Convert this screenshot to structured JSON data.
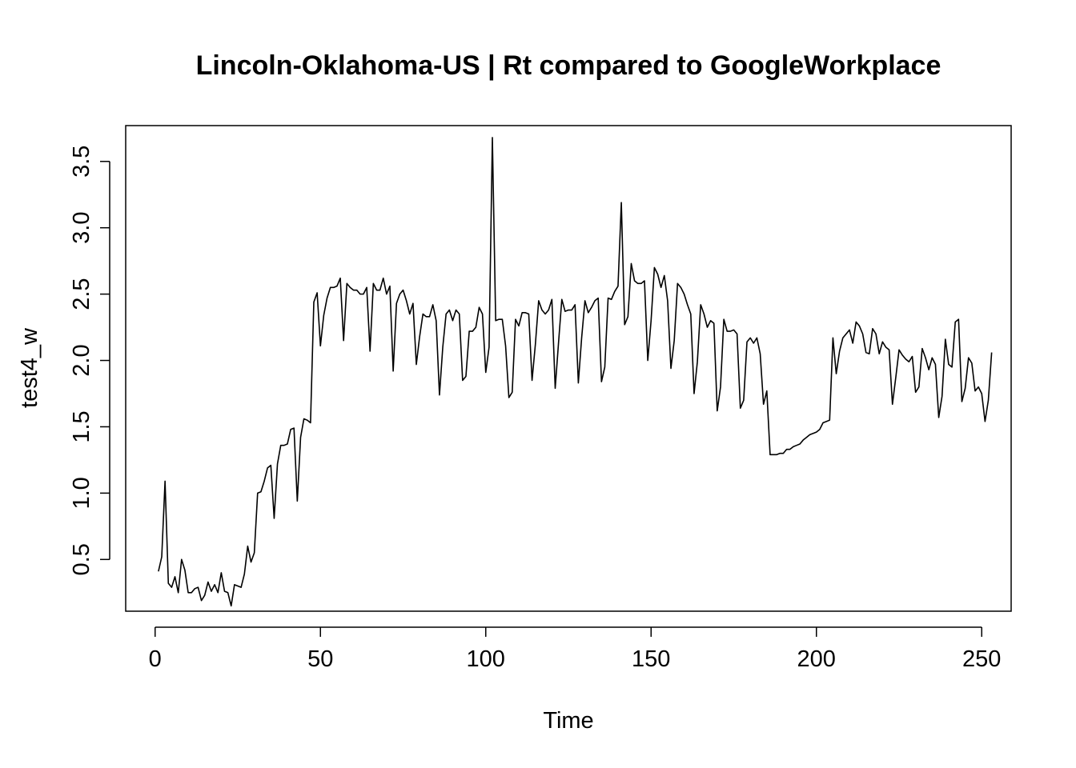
{
  "chart_data": {
    "type": "line",
    "title": "Lincoln-Oklahoma-US | Rt compared to GoogleWorkplace",
    "xlabel": "Time",
    "ylabel": "test4_w",
    "xlim": [
      -8.9,
      258.9
    ],
    "ylim": [
      0.11,
      3.77
    ],
    "xticks": [
      0,
      50,
      100,
      150,
      200,
      250
    ],
    "xtick_labels": [
      "0",
      "50",
      "100",
      "150",
      "200",
      "250"
    ],
    "yticks": [
      0.5,
      1.0,
      1.5,
      2.0,
      2.5,
      3.0,
      3.5
    ],
    "ytick_labels": [
      "0.5",
      "1.0",
      "1.5",
      "2.0",
      "2.5",
      "3.0",
      "3.5"
    ],
    "grid": false,
    "line_color": "#000000",
    "series": [
      {
        "x_start": 1,
        "values": [
          0.41,
          0.52,
          1.09,
          0.32,
          0.29,
          0.37,
          0.25,
          0.5,
          0.42,
          0.25,
          0.25,
          0.28,
          0.29,
          0.19,
          0.23,
          0.33,
          0.26,
          0.31,
          0.25,
          0.4,
          0.26,
          0.25,
          0.15,
          0.31,
          0.3,
          0.29,
          0.39,
          0.6,
          0.48,
          0.55,
          1.0,
          1.01,
          1.09,
          1.19,
          1.21,
          0.81,
          1.22,
          1.36,
          1.36,
          1.37,
          1.48,
          1.49,
          0.94,
          1.42,
          1.56,
          1.55,
          1.53,
          2.44,
          2.51,
          2.11,
          2.34,
          2.47,
          2.55,
          2.55,
          2.56,
          2.62,
          2.15,
          2.58,
          2.55,
          2.53,
          2.53,
          2.5,
          2.5,
          2.55,
          2.07,
          2.58,
          2.53,
          2.53,
          2.62,
          2.5,
          2.56,
          1.92,
          2.43,
          2.5,
          2.53,
          2.45,
          2.35,
          2.43,
          1.97,
          2.18,
          2.35,
          2.33,
          2.33,
          2.42,
          2.3,
          1.74,
          2.1,
          2.35,
          2.38,
          2.3,
          2.38,
          2.35,
          1.85,
          1.88,
          2.22,
          2.22,
          2.25,
          2.4,
          2.35,
          1.91,
          2.1,
          3.68,
          2.3,
          2.31,
          2.31,
          2.11,
          1.72,
          1.76,
          2.31,
          2.26,
          2.36,
          2.36,
          2.35,
          1.85,
          2.12,
          2.45,
          2.38,
          2.35,
          2.38,
          2.46,
          1.79,
          2.13,
          2.46,
          2.37,
          2.38,
          2.38,
          2.42,
          1.83,
          2.17,
          2.45,
          2.36,
          2.4,
          2.45,
          2.47,
          1.84,
          1.95,
          2.47,
          2.46,
          2.52,
          2.56,
          3.19,
          2.27,
          2.33,
          2.73,
          2.6,
          2.58,
          2.58,
          2.6,
          2.0,
          2.3,
          2.7,
          2.65,
          2.55,
          2.64,
          2.45,
          1.94,
          2.15,
          2.58,
          2.55,
          2.5,
          2.42,
          2.35,
          1.75,
          1.99,
          2.42,
          2.35,
          2.25,
          2.3,
          2.28,
          1.62,
          1.8,
          2.31,
          2.22,
          2.22,
          2.23,
          2.2,
          1.64,
          1.7,
          2.14,
          2.17,
          2.13,
          2.17,
          2.05,
          1.67,
          1.77,
          1.29,
          1.29,
          1.29,
          1.3,
          1.3,
          1.33,
          1.33,
          1.35,
          1.36,
          1.37,
          1.4,
          1.42,
          1.44,
          1.45,
          1.46,
          1.48,
          1.53,
          1.54,
          1.55,
          2.17,
          1.9,
          2.07,
          2.17,
          2.2,
          2.23,
          2.13,
          2.29,
          2.26,
          2.2,
          2.06,
          2.05,
          2.24,
          2.2,
          2.05,
          2.14,
          2.1,
          2.08,
          1.67,
          1.87,
          2.08,
          2.04,
          2.01,
          1.99,
          2.03,
          1.76,
          1.8,
          2.09,
          2.02,
          1.93,
          2.02,
          1.97,
          1.57,
          1.73,
          2.16,
          1.97,
          1.95,
          2.29,
          2.31,
          1.69,
          1.79,
          2.02,
          1.98,
          1.77,
          1.8,
          1.75,
          1.54,
          1.7,
          2.06
        ]
      }
    ]
  }
}
